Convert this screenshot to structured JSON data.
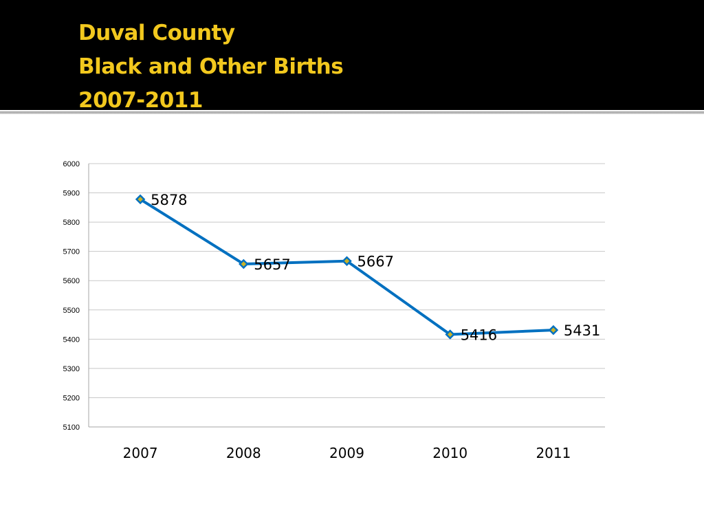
{
  "slide": {
    "title_lines": [
      "Duval County",
      "Black and Other Births",
      "2007-2011"
    ]
  },
  "colors": {
    "header_bg": "#000000",
    "title_text": "#f2c81e",
    "series_line": "#0070c0",
    "marker_fill": "#c9b227"
  },
  "chart_data": {
    "type": "line",
    "title": "",
    "xlabel": "",
    "ylabel": "",
    "categories": [
      "2007",
      "2008",
      "2009",
      "2010",
      "2011"
    ],
    "series": [
      {
        "values": [
          5878,
          5657,
          5667,
          5416,
          5431
        ]
      }
    ],
    "data_labels": [
      "5878",
      "5657",
      "5667",
      "5416",
      "5431"
    ],
    "ylim": [
      5100,
      6000
    ],
    "yticks": [
      6000,
      5900,
      5800,
      5700,
      5600,
      5500,
      5400,
      5300,
      5200,
      5100
    ],
    "grid": true,
    "legend": "none",
    "marker": "diamond"
  }
}
